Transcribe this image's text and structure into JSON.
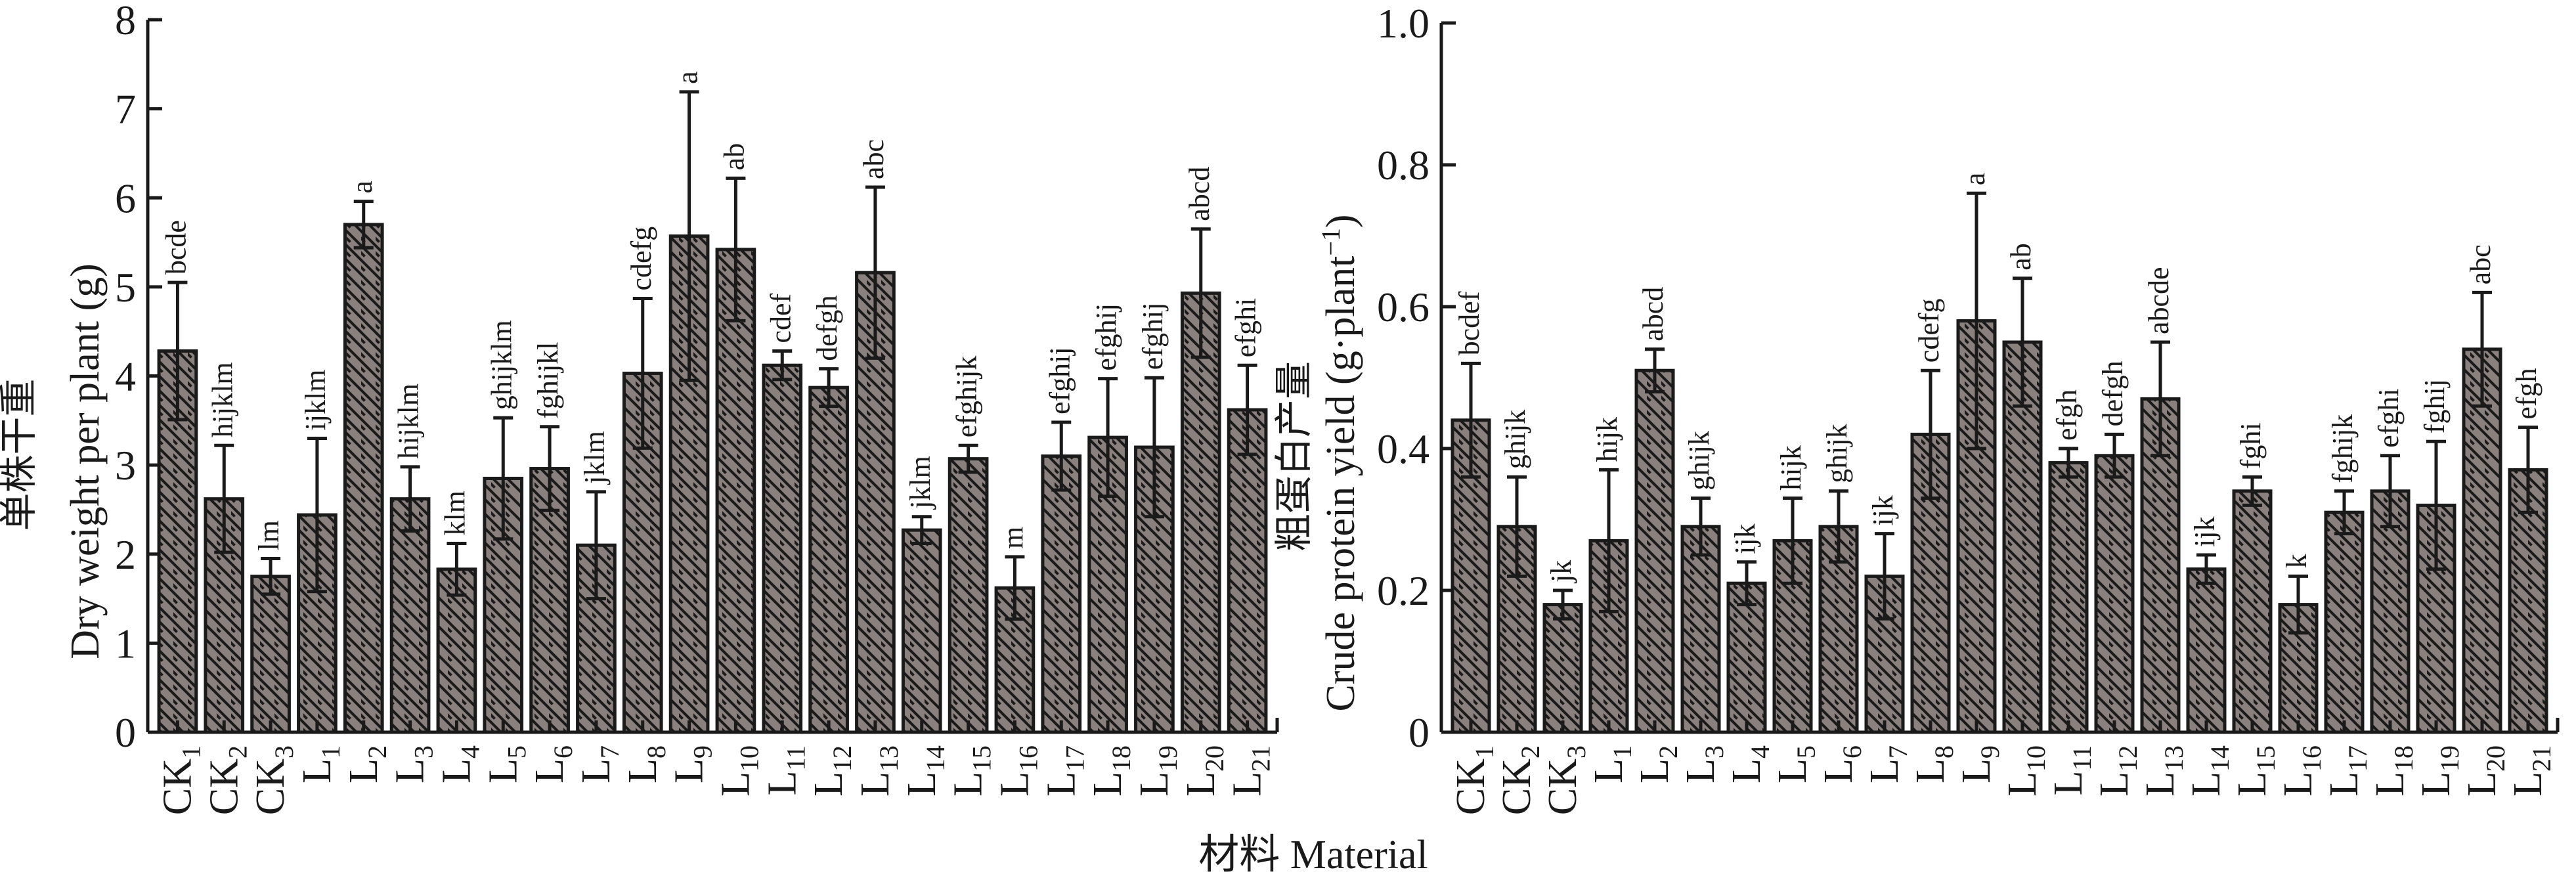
{
  "colors": {
    "bar_fill": "#8a807d",
    "stroke": "#1a1a1a",
    "hatch": "#1a1a1a"
  },
  "shared_xlabel": "材料 Material",
  "chart_data": [
    {
      "type": "bar",
      "ylabel_cn": "单株干重",
      "ylabel": "Dry weight per plant (g)",
      "ylim": [
        0,
        8
      ],
      "yticks": [
        "0",
        "1",
        "2",
        "3",
        "4",
        "5",
        "6",
        "7",
        "8"
      ],
      "grid": false,
      "categories": [
        {
          "base": "CK",
          "sub": "1"
        },
        {
          "base": "CK",
          "sub": "2"
        },
        {
          "base": "CK",
          "sub": "3"
        },
        {
          "base": "L",
          "sub": "1"
        },
        {
          "base": "L",
          "sub": "2"
        },
        {
          "base": "L",
          "sub": "3"
        },
        {
          "base": "L",
          "sub": "4"
        },
        {
          "base": "L",
          "sub": "5"
        },
        {
          "base": "L",
          "sub": "6"
        },
        {
          "base": "L",
          "sub": "7"
        },
        {
          "base": "L",
          "sub": "8"
        },
        {
          "base": "L",
          "sub": "9"
        },
        {
          "base": "L",
          "sub": "10"
        },
        {
          "base": "L",
          "sub": "11"
        },
        {
          "base": "L",
          "sub": "12"
        },
        {
          "base": "L",
          "sub": "13"
        },
        {
          "base": "L",
          "sub": "14"
        },
        {
          "base": "L",
          "sub": "15"
        },
        {
          "base": "L",
          "sub": "16"
        },
        {
          "base": "L",
          "sub": "17"
        },
        {
          "base": "L",
          "sub": "18"
        },
        {
          "base": "L",
          "sub": "19"
        },
        {
          "base": "L",
          "sub": "20"
        },
        {
          "base": "L",
          "sub": "21"
        }
      ],
      "values": [
        4.28,
        2.62,
        1.75,
        2.44,
        5.7,
        2.62,
        1.83,
        2.85,
        2.96,
        2.1,
        4.03,
        5.57,
        5.42,
        4.12,
        3.87,
        5.16,
        2.27,
        3.07,
        1.62,
        3.1,
        3.31,
        3.2,
        4.93,
        3.62
      ],
      "errors": [
        0.77,
        0.6,
        0.2,
        0.86,
        0.26,
        0.36,
        0.29,
        0.68,
        0.47,
        0.6,
        0.84,
        1.62,
        0.8,
        0.16,
        0.21,
        0.96,
        0.15,
        0.15,
        0.35,
        0.38,
        0.66,
        0.78,
        0.72,
        0.5
      ],
      "letters": [
        "bcde",
        "hijklm",
        "lm",
        "ijklm",
        "a",
        "hijklm",
        "klm",
        "ghijklm",
        "fghijkl",
        "jklm",
        "cdefg",
        "a",
        "ab",
        "cdef",
        "defgh",
        "abc",
        "jklm",
        "efghijk",
        "m",
        "efghij",
        "efghij",
        "efghij",
        "abcd",
        "efghi"
      ]
    },
    {
      "type": "bar",
      "ylabel_cn": "粗蛋白产量",
      "ylabel": "Crude protein yield (g·plant",
      "ylabel_sup": "−1",
      "ylabel_end": ")",
      "ylim": [
        0,
        1.0
      ],
      "yticks": [
        "0",
        "0.2",
        "0.4",
        "0.6",
        "0.8",
        "1.0"
      ],
      "grid": false,
      "categories": [
        {
          "base": "CK",
          "sub": "1"
        },
        {
          "base": "CK",
          "sub": "2"
        },
        {
          "base": "CK",
          "sub": "3"
        },
        {
          "base": "L",
          "sub": "1"
        },
        {
          "base": "L",
          "sub": "2"
        },
        {
          "base": "L",
          "sub": "3"
        },
        {
          "base": "L",
          "sub": "4"
        },
        {
          "base": "L",
          "sub": "5"
        },
        {
          "base": "L",
          "sub": "6"
        },
        {
          "base": "L",
          "sub": "7"
        },
        {
          "base": "L",
          "sub": "8"
        },
        {
          "base": "L",
          "sub": "9"
        },
        {
          "base": "L",
          "sub": "10"
        },
        {
          "base": "L",
          "sub": "11"
        },
        {
          "base": "L",
          "sub": "12"
        },
        {
          "base": "L",
          "sub": "13"
        },
        {
          "base": "L",
          "sub": "14"
        },
        {
          "base": "L",
          "sub": "15"
        },
        {
          "base": "L",
          "sub": "16"
        },
        {
          "base": "L",
          "sub": "17"
        },
        {
          "base": "L",
          "sub": "18"
        },
        {
          "base": "L",
          "sub": "19"
        },
        {
          "base": "L",
          "sub": "20"
        },
        {
          "base": "L",
          "sub": "21"
        }
      ],
      "values": [
        0.44,
        0.29,
        0.18,
        0.27,
        0.51,
        0.29,
        0.21,
        0.27,
        0.29,
        0.22,
        0.42,
        0.58,
        0.55,
        0.38,
        0.39,
        0.47,
        0.23,
        0.34,
        0.18,
        0.31,
        0.34,
        0.32,
        0.54,
        0.37
      ],
      "errors": [
        0.08,
        0.07,
        0.02,
        0.1,
        0.03,
        0.04,
        0.03,
        0.06,
        0.05,
        0.06,
        0.09,
        0.18,
        0.09,
        0.02,
        0.03,
        0.08,
        0.02,
        0.02,
        0.04,
        0.03,
        0.05,
        0.09,
        0.08,
        0.06
      ],
      "letters": [
        "bcdef",
        "ghijk",
        "jk",
        "hijk",
        "abcd",
        "ghijk",
        "ijk",
        "hijk",
        "ghijk",
        "ijk",
        "cdefg",
        "a",
        "ab",
        "efgh",
        "defgh",
        "abcde",
        "ijk",
        "fghi",
        "k",
        "fghijk",
        "efghi",
        "fghij",
        "abc",
        "efgh"
      ]
    }
  ]
}
